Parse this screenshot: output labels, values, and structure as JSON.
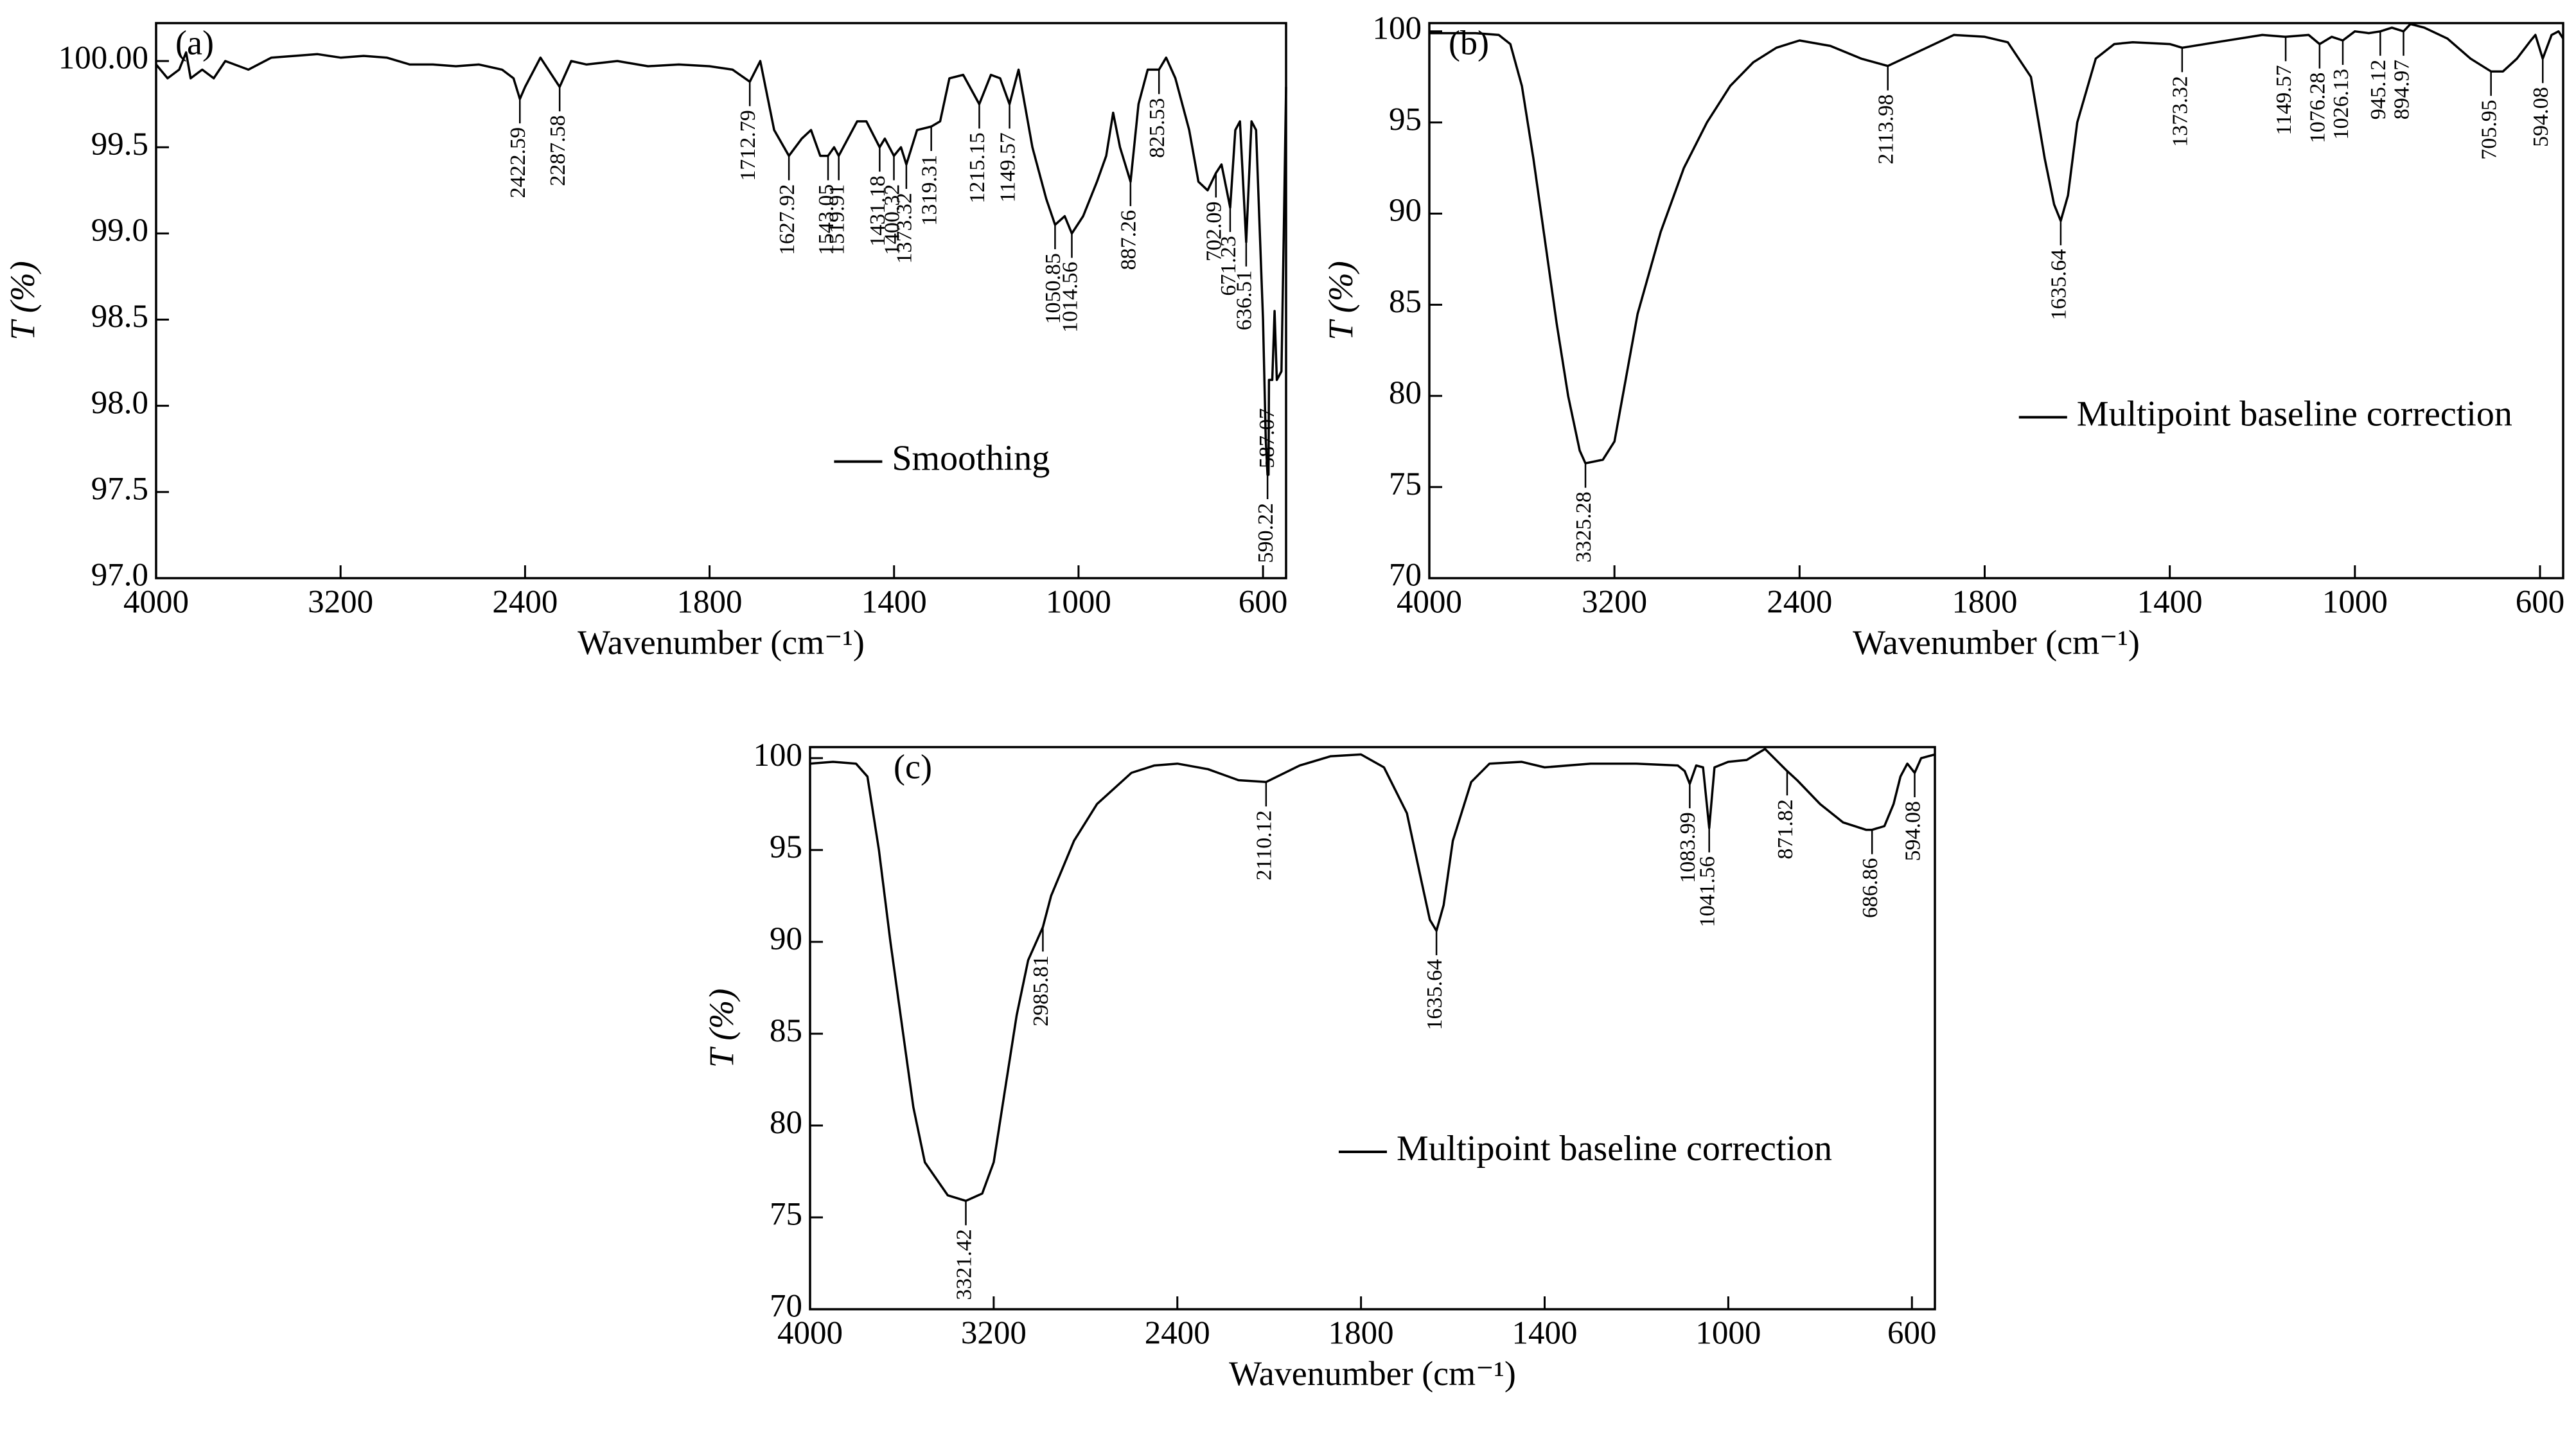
{
  "chart_data": [
    {
      "type": "line",
      "panel_label": "(a)",
      "xlabel": "Wavenumber (cm⁻¹)",
      "ylabel": "T (%)",
      "xlim": [
        4000,
        550
      ],
      "xticks": [
        4000,
        3200,
        2400,
        1800,
        1400,
        1000,
        600
      ],
      "ylim": [
        97.0,
        100.22
      ],
      "yticks": [
        {
          "value": 97.0,
          "label": "97.0"
        },
        97.5,
        {
          "value": 98.0,
          "label": "98.0"
        },
        98.5,
        {
          "value": 99.0,
          "label": "99.0"
        },
        99.5,
        {
          "value": 100.0,
          "label": "100.00"
        }
      ],
      "legend": "center",
      "x": [
        4000,
        3950,
        3900,
        3870,
        3850,
        3800,
        3750,
        3700,
        3600,
        3500,
        3400,
        3300,
        3200,
        3100,
        3000,
        2900,
        2800,
        2700,
        2600,
        2500,
        2450,
        2422.59,
        2400,
        2350,
        2287.58,
        2250,
        2200,
        2100,
        2000,
        1900,
        1800,
        1750,
        1712.79,
        1690,
        1660,
        1627.92,
        1600,
        1580,
        1560,
        1543.05,
        1530,
        1519.91,
        1500,
        1480,
        1460,
        1431.18,
        1420,
        1400.32,
        1385,
        1373.32,
        1350,
        1319.31,
        1300,
        1280,
        1250,
        1215.15,
        1190,
        1170,
        1149.57,
        1130,
        1100,
        1070,
        1050.85,
        1030,
        1014.56,
        990,
        960,
        940,
        925,
        910,
        887.26,
        870,
        850,
        825.53,
        810,
        790,
        760,
        740,
        720,
        702.09,
        690,
        671.23,
        660,
        650,
        636.51,
        625,
        615,
        600,
        594,
        590.22,
        588,
        587.07,
        580,
        575,
        570,
        560,
        555,
        550
      ],
      "series": [
        {
          "name": "Smoothing",
          "color": "#000000",
          "values": [
            99.98,
            99.9,
            99.95,
            100.05,
            99.9,
            99.95,
            99.9,
            100.0,
            99.95,
            100.02,
            100.03,
            100.04,
            100.02,
            100.03,
            100.02,
            99.98,
            99.98,
            99.97,
            99.98,
            99.95,
            99.9,
            99.78,
            99.85,
            100.02,
            99.85,
            100.0,
            99.98,
            100.0,
            99.97,
            99.98,
            99.97,
            99.95,
            99.88,
            100.0,
            99.6,
            99.45,
            99.55,
            99.6,
            99.45,
            99.45,
            99.5,
            99.45,
            99.55,
            99.65,
            99.65,
            99.5,
            99.55,
            99.45,
            99.5,
            99.4,
            99.6,
            99.62,
            99.65,
            99.9,
            99.92,
            99.75,
            99.92,
            99.9,
            99.75,
            99.95,
            99.5,
            99.2,
            99.05,
            99.1,
            99.0,
            99.1,
            99.3,
            99.45,
            99.7,
            99.5,
            99.3,
            99.75,
            99.95,
            99.95,
            100.02,
            99.9,
            99.6,
            99.3,
            99.25,
            99.35,
            99.4,
            99.15,
            99.6,
            99.65,
            98.95,
            99.65,
            99.6,
            98.5,
            97.8,
            97.6,
            97.6,
            98.15,
            98.15,
            98.55,
            98.15,
            98.2,
            99.0,
            99.85
          ]
        }
      ],
      "peaks": [
        {
          "x": 2422.59,
          "y": 99.78
        },
        {
          "x": 2287.58,
          "y": 99.85
        },
        {
          "x": 1712.79,
          "y": 99.88
        },
        {
          "x": 1627.92,
          "y": 99.45
        },
        {
          "x": 1543.05,
          "y": 99.45
        },
        {
          "x": 1519.91,
          "y": 99.45
        },
        {
          "x": 1431.18,
          "y": 99.5
        },
        {
          "x": 1400.32,
          "y": 99.45
        },
        {
          "x": 1373.32,
          "y": 99.4
        },
        {
          "x": 1319.31,
          "y": 99.62
        },
        {
          "x": 1215.15,
          "y": 99.75
        },
        {
          "x": 1149.57,
          "y": 99.75
        },
        {
          "x": 1050.85,
          "y": 99.05
        },
        {
          "x": 1014.56,
          "y": 99.0
        },
        {
          "x": 887.26,
          "y": 99.3
        },
        {
          "x": 825.53,
          "y": 99.95
        },
        {
          "x": 702.09,
          "y": 99.35
        },
        {
          "x": 671.23,
          "y": 99.15
        },
        {
          "x": 636.51,
          "y": 98.95
        },
        {
          "x": 587.07,
          "y": 98.15
        },
        {
          "x": 590.22,
          "y": 97.6
        }
      ]
    },
    {
      "type": "line",
      "panel_label": "(b)",
      "xlabel": "Wavenumber (cm⁻¹)",
      "ylabel": "T (%)",
      "xlim": [
        4000,
        550
      ],
      "xticks": [
        4000,
        3200,
        2400,
        1800,
        1400,
        1000,
        600
      ],
      "ylim": [
        70,
        100.45
      ],
      "yticks": [
        70,
        75,
        80,
        85,
        90,
        95,
        100
      ],
      "legend": "center right",
      "x": [
        4000,
        3800,
        3700,
        3650,
        3600,
        3550,
        3500,
        3450,
        3400,
        3350,
        3325.28,
        3250,
        3200,
        3150,
        3100,
        3000,
        2900,
        2800,
        2700,
        2600,
        2500,
        2400,
        2300,
        2200,
        2113.98,
        2000,
        1900,
        1800,
        1750,
        1700,
        1670,
        1650,
        1635.64,
        1620,
        1600,
        1560,
        1520,
        1480,
        1400,
        1373.32,
        1300,
        1200,
        1149.57,
        1100,
        1076.28,
        1050,
        1026.13,
        1000,
        970,
        945.12,
        920,
        894.97,
        880,
        850,
        800,
        750,
        705.95,
        680,
        650,
        620,
        610,
        594.08,
        575,
        560,
        550
      ],
      "series": [
        {
          "name": "Multipoint baseline correction",
          "color": "#000000",
          "values": [
            99.9,
            99.9,
            99.8,
            99.3,
            97,
            93,
            88.5,
            84,
            80,
            77,
            76.3,
            76.5,
            77.5,
            81,
            84.5,
            89,
            92.5,
            95,
            97,
            98.3,
            99.1,
            99.5,
            99.2,
            98.5,
            98.1,
            99.0,
            99.8,
            99.7,
            99.4,
            97.5,
            93,
            90.5,
            89.6,
            91,
            95,
            98.5,
            99.3,
            99.4,
            99.3,
            99.1,
            99.4,
            99.8,
            99.7,
            99.8,
            99.3,
            99.7,
            99.5,
            100.0,
            99.9,
            100.0,
            100.2,
            100.0,
            100.4,
            100.2,
            99.6,
            98.5,
            97.8,
            97.8,
            98.5,
            99.5,
            99.8,
            98.5,
            99.8,
            100.0,
            99.6
          ]
        }
      ],
      "peaks": [
        {
          "x": 3325.28,
          "y": 76.3
        },
        {
          "x": 2113.98,
          "y": 98.1
        },
        {
          "x": 1635.64,
          "y": 89.6
        },
        {
          "x": 1373.32,
          "y": 99.1
        },
        {
          "x": 1149.57,
          "y": 99.7
        },
        {
          "x": 1076.28,
          "y": 99.3
        },
        {
          "x": 1026.13,
          "y": 99.5
        },
        {
          "x": 945.12,
          "y": 100.0
        },
        {
          "x": 894.97,
          "y": 100.0
        },
        {
          "x": 705.95,
          "y": 97.8
        },
        {
          "x": 594.08,
          "y": 98.5
        }
      ]
    },
    {
      "type": "line",
      "panel_label": "(c)",
      "xlabel": "Wavenumber (cm⁻¹)",
      "ylabel": "T (%)",
      "xlim": [
        4000,
        550
      ],
      "xticks": [
        4000,
        3200,
        2400,
        1800,
        1400,
        1000,
        600
      ],
      "ylim": [
        70,
        100.6
      ],
      "yticks": [
        70,
        75,
        80,
        85,
        90,
        95,
        100
      ],
      "legend": "lower right",
      "x": [
        4000,
        3900,
        3800,
        3750,
        3700,
        3650,
        3600,
        3550,
        3500,
        3400,
        3321.42,
        3250,
        3200,
        3150,
        3100,
        3050,
        2985.81,
        2950,
        2850,
        2750,
        2600,
        2500,
        2400,
        2300,
        2200,
        2110.12,
        2000,
        1900,
        1800,
        1750,
        1700,
        1670,
        1650,
        1635.64,
        1620,
        1600,
        1560,
        1520,
        1450,
        1400,
        1300,
        1200,
        1110,
        1095,
        1083.99,
        1070,
        1055,
        1041.56,
        1030,
        1000,
        960,
        940,
        920,
        900,
        880,
        871.82,
        850,
        800,
        750,
        700,
        686.86,
        660,
        640,
        625,
        610,
        594.08,
        580,
        565,
        550
      ],
      "series": [
        {
          "name": "Multipoint baseline correction",
          "color": "#000000",
          "values": [
            99.7,
            99.8,
            99.7,
            99.0,
            95,
            90,
            85.5,
            81,
            78,
            76.2,
            75.9,
            76.3,
            78,
            82,
            86,
            89,
            90.8,
            92.5,
            95.5,
            97.5,
            99.2,
            99.6,
            99.7,
            99.4,
            98.8,
            98.7,
            99.6,
            100.1,
            100.2,
            99.5,
            97,
            93.5,
            91.2,
            90.6,
            92,
            95.5,
            98.7,
            99.7,
            99.8,
            99.5,
            99.7,
            99.7,
            99.6,
            99.3,
            98.6,
            99.6,
            99.5,
            96.2,
            99.5,
            99.8,
            99.9,
            100.2,
            100.5,
            100.0,
            99.5,
            99.3,
            98.8,
            97.5,
            96.5,
            96.1,
            96.1,
            96.3,
            97.5,
            99,
            99.7,
            99.2,
            100.0,
            100.1,
            100.2
          ]
        }
      ],
      "peaks": [
        {
          "x": 3321.42,
          "y": 75.9
        },
        {
          "x": 2985.81,
          "y": 90.8
        },
        {
          "x": 2110.12,
          "y": 98.7
        },
        {
          "x": 1635.64,
          "y": 90.6
        },
        {
          "x": 1083.99,
          "y": 98.6
        },
        {
          "x": 1041.56,
          "y": 96.2
        },
        {
          "x": 871.82,
          "y": 99.3
        },
        {
          "x": 686.86,
          "y": 96.1
        },
        {
          "x": 594.08,
          "y": 99.2
        }
      ]
    }
  ]
}
